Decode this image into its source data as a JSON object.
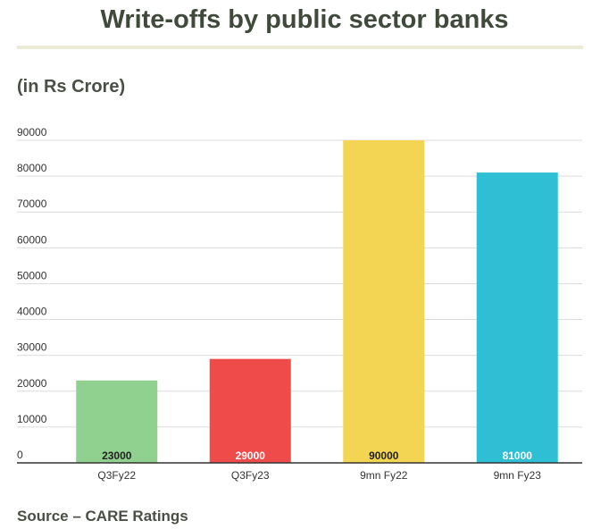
{
  "page": {
    "title": "Write-offs by public sector banks",
    "subtitle": "(in Rs Crore)",
    "source": "Source – CARE Ratings"
  },
  "chart_data": {
    "type": "bar",
    "categories": [
      "Q3Fy22",
      "Q3Fy23",
      "9mn Fy22",
      "9mn Fy23"
    ],
    "values": [
      23000,
      29000,
      90000,
      81000
    ],
    "data_labels": [
      "23000",
      "29000",
      "90000",
      "81000"
    ],
    "colors": [
      "#90d18f",
      "#ef4b4b",
      "#f4d553",
      "#2fbfd4"
    ],
    "label_colors": [
      "#222222",
      "#ffffff",
      "#222222",
      "#ffffff"
    ],
    "y_ticks": [
      0,
      10000,
      20000,
      30000,
      40000,
      50000,
      60000,
      70000,
      80000,
      90000
    ],
    "y_tick_labels": [
      "0",
      "10000",
      "20000",
      "30000",
      "40000",
      "50000",
      "60000",
      "70000",
      "80000",
      "90000"
    ],
    "ylim": [
      0,
      90000
    ],
    "grid": true,
    "legend": "none"
  }
}
